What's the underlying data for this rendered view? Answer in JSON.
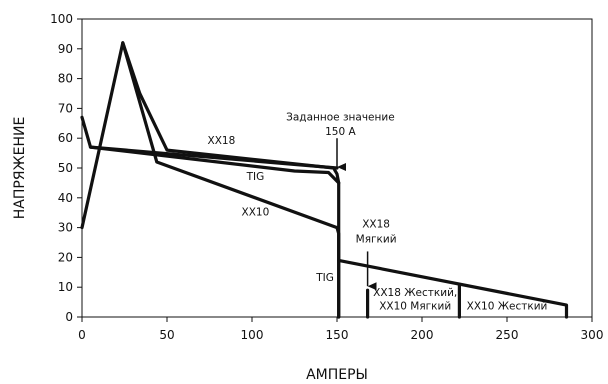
{
  "chart_data": {
    "type": "line",
    "title": "",
    "xlabel": "АМПЕРЫ",
    "ylabel": "НАПРЯЖЕНИЕ",
    "xlim": [
      0,
      300
    ],
    "ylim": [
      0,
      100
    ],
    "x_ticks": [
      0,
      50,
      100,
      150,
      200,
      250,
      300
    ],
    "y_ticks": [
      0,
      10,
      20,
      30,
      40,
      50,
      60,
      70,
      80,
      90,
      100
    ],
    "grid": false,
    "series": [
      {
        "points": [
          [
            0,
            30
          ],
          [
            24,
            92
          ],
          [
            34,
            75
          ],
          [
            50,
            56
          ],
          [
            148,
            50
          ],
          [
            150,
            48
          ],
          [
            151,
            45
          ],
          [
            151,
            0
          ]
        ]
      },
      {
        "points": [
          [
            0,
            67
          ],
          [
            5,
            57
          ],
          [
            150,
            50
          ]
        ]
      },
      {
        "points": [
          [
            24,
            92
          ],
          [
            44,
            52
          ],
          [
            150,
            30
          ],
          [
            151,
            28
          ],
          [
            151,
            0
          ]
        ]
      },
      {
        "points": [
          [
            5,
            57
          ],
          [
            125,
            49
          ],
          [
            145,
            48.5
          ],
          [
            151,
            45
          ]
        ]
      },
      {
        "points": [
          [
            151,
            19
          ],
          [
            285,
            4
          ],
          [
            285,
            0
          ]
        ]
      },
      {
        "points": [
          [
            168,
            9
          ],
          [
            168,
            0
          ]
        ]
      },
      {
        "points": [
          [
            222,
            11
          ],
          [
            222,
            0
          ]
        ]
      }
    ],
    "annotations": [
      {
        "text": "XX18",
        "x": 82,
        "y": 58
      },
      {
        "text": "TIG",
        "x": 102,
        "y": 46
      },
      {
        "text": "XX10",
        "x": 102,
        "y": 34
      },
      {
        "text": "Заданное значение",
        "x": 152,
        "y": 66
      },
      {
        "text": "150 A",
        "x": 152,
        "y": 61
      },
      {
        "text": "XX18",
        "x": 173,
        "y": 30
      },
      {
        "text": "Мягкий",
        "x": 173,
        "y": 25
      },
      {
        "text": "TIG",
        "x": 143,
        "y": 12
      },
      {
        "text": "XX18 Жесткий,",
        "x": 196,
        "y": 7
      },
      {
        "text": "XX10 Мягкий",
        "x": 196,
        "y": 2.5
      },
      {
        "text": "XX10 Жесткий",
        "x": 250,
        "y": 2.5
      }
    ],
    "arrows": [
      {
        "x": 150,
        "y_from": 60,
        "y_to": 50
      },
      {
        "x": 168,
        "y_from": 22,
        "y_to": 10
      }
    ]
  }
}
